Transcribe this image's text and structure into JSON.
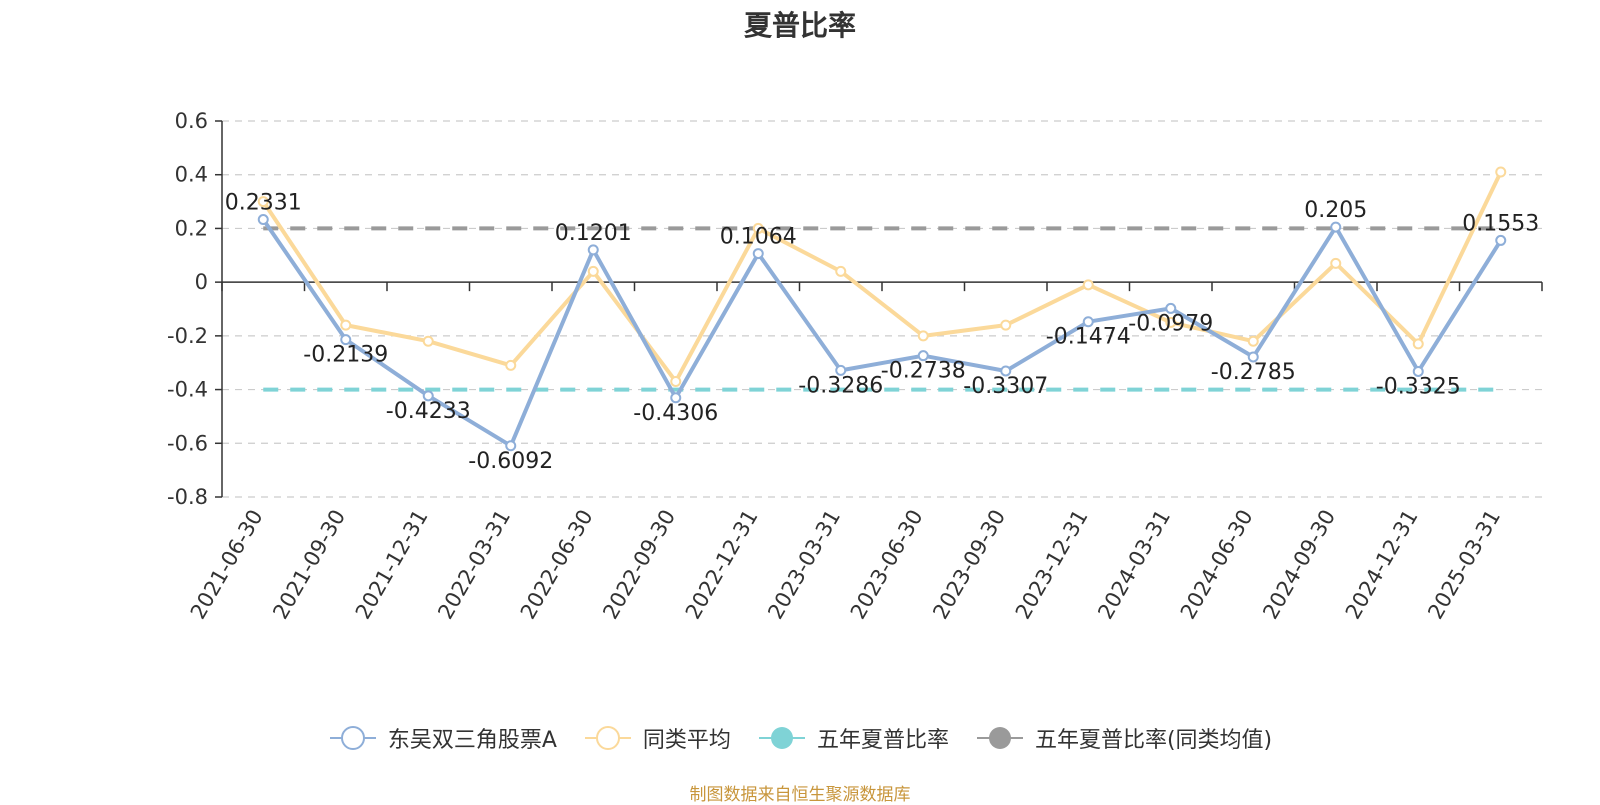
{
  "title": "夏普比率",
  "source_note": "制图数据来自恒生聚源数据库",
  "chart_data": {
    "type": "line",
    "title": "夏普比率",
    "categories": [
      "2021-06-30",
      "2021-09-30",
      "2021-12-31",
      "2022-03-31",
      "2022-06-30",
      "2022-09-30",
      "2022-12-31",
      "2023-03-31",
      "2023-06-30",
      "2023-09-30",
      "2023-12-31",
      "2024-03-31",
      "2024-06-30",
      "2024-09-30",
      "2024-12-31",
      "2025-03-31"
    ],
    "ylim": [
      -0.8,
      0.6
    ],
    "yticks": [
      0.6,
      0.4,
      0.2,
      0,
      -0.2,
      -0.4,
      -0.6,
      -0.8
    ],
    "grid": true,
    "legend_position": "bottom",
    "series": [
      {
        "name": "东吴双三角股票A",
        "color": "#8eaed8",
        "labels": true,
        "values": [
          0.2331,
          -0.2139,
          -0.4233,
          -0.6092,
          0.1201,
          -0.4306,
          0.1064,
          -0.3286,
          -0.2738,
          -0.3307,
          -0.1474,
          -0.0979,
          -0.2785,
          0.205,
          -0.3325,
          0.1553
        ]
      },
      {
        "name": "同类平均",
        "color": "#fbd99a",
        "labels": false,
        "values": [
          0.3,
          -0.16,
          -0.22,
          -0.31,
          0.04,
          -0.37,
          0.2,
          0.04,
          -0.2,
          -0.16,
          -0.01,
          -0.15,
          -0.22,
          0.07,
          -0.23,
          0.41
        ]
      },
      {
        "name": "五年夏普比率",
        "color": "#7fd3d6",
        "type": "reference",
        "value": -0.4
      },
      {
        "name": "五年夏普比率(同类均值)",
        "color": "#9a9a9a",
        "type": "reference",
        "value": 0.2
      }
    ]
  }
}
